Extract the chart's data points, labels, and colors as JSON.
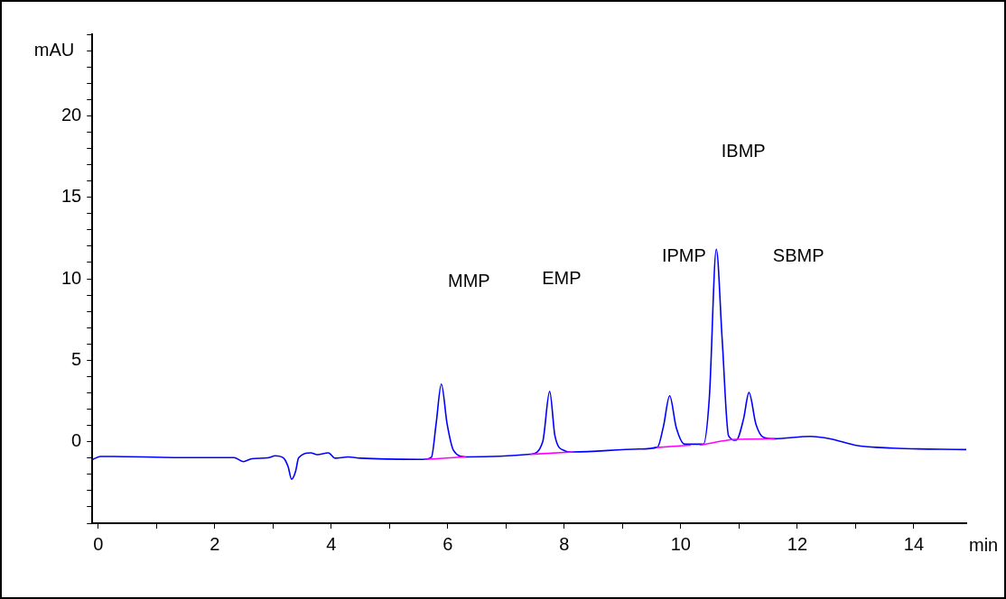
{
  "chart_data": {
    "type": "line",
    "xlabel": "min",
    "ylabel": "mAU",
    "xlim": [
      -0.1,
      14.9
    ],
    "ylim": [
      -5,
      25
    ],
    "xticks": [
      0,
      {
        "value": 1,
        "label": null
      },
      2,
      {
        "value": 3,
        "label": null
      },
      4,
      {
        "value": 5,
        "label": null
      },
      6,
      {
        "value": 7,
        "label": null
      },
      8,
      {
        "value": 9,
        "label": null
      },
      10,
      {
        "value": 11,
        "label": null
      },
      12,
      {
        "value": 13,
        "label": null
      },
      14
    ],
    "yticks": [
      {
        "value": -5,
        "label": null
      },
      {
        "value": -4,
        "label": null
      },
      {
        "value": -3,
        "label": null
      },
      {
        "value": -2,
        "label": null
      },
      {
        "value": -1,
        "label": null
      },
      0,
      {
        "value": 1,
        "label": null
      },
      {
        "value": 2,
        "label": null
      },
      {
        "value": 3,
        "label": null
      },
      {
        "value": 4,
        "label": null
      },
      5,
      {
        "value": 6,
        "label": null
      },
      {
        "value": 7,
        "label": null
      },
      {
        "value": 8,
        "label": null
      },
      {
        "value": 9,
        "label": null
      },
      10,
      {
        "value": 11,
        "label": null
      },
      {
        "value": 12,
        "label": null
      },
      {
        "value": 13,
        "label": null
      },
      {
        "value": 14,
        "label": null
      },
      15,
      {
        "value": 16,
        "label": null
      },
      {
        "value": 17,
        "label": null
      },
      {
        "value": 18,
        "label": null
      },
      {
        "value": 19,
        "label": null
      },
      20,
      {
        "value": 21,
        "label": null
      },
      {
        "value": 22,
        "label": null
      },
      {
        "value": 23,
        "label": null
      },
      {
        "value": 24,
        "label": null
      },
      {
        "value": 25,
        "label": null
      }
    ],
    "grid": false,
    "legend": false,
    "marker": "none",
    "line_style": "solid",
    "series": [
      {
        "color": "#0000ff",
        "x": [
          -0.09,
          0.04,
          0.25,
          1.32,
          2.33,
          2.49,
          2.64,
          2.91,
          3.04,
          3.18,
          3.26,
          3.32,
          3.39,
          3.44,
          3.65,
          3.76,
          3.95,
          4.07,
          4.29,
          4.5,
          5.57,
          5.72,
          5.8,
          5.89,
          5.99,
          6.1,
          6.31,
          7.42,
          7.63,
          7.75,
          7.84,
          8.0,
          8.15,
          9.28,
          9.6,
          9.7,
          9.81,
          9.92,
          10.07,
          10.39,
          10.49,
          10.61,
          10.71,
          10.82,
          10.95,
          11.08,
          11.17,
          11.29,
          11.42,
          11.61,
          12.22,
          12.57,
          12.99,
          13.63,
          14.9
        ],
        "values": [
          -1.08,
          -0.9,
          -0.9,
          -0.97,
          -0.97,
          -1.22,
          -1.04,
          -0.99,
          -0.86,
          -0.99,
          -1.53,
          -2.3,
          -1.8,
          -0.99,
          -0.68,
          -0.79,
          -0.68,
          -1.01,
          -0.93,
          -1.01,
          -1.08,
          -0.95,
          1.08,
          3.54,
          1.08,
          -0.54,
          -0.93,
          -0.77,
          0.0,
          3.09,
          0.36,
          -0.54,
          -0.63,
          -0.45,
          -0.33,
          0.9,
          2.82,
          0.9,
          -0.15,
          -0.15,
          2.69,
          11.81,
          6.3,
          0.36,
          0.09,
          1.44,
          3.02,
          1.08,
          0.27,
          0.18,
          0.33,
          0.18,
          -0.21,
          -0.39,
          -0.48
        ]
      },
      {
        "color": "#ff00ff",
        "x": [
          5.62,
          6.31,
          6.9,
          7.42,
          8.15,
          8.9,
          9.58,
          10.17,
          10.25,
          10.33,
          10.95,
          11.61
        ],
        "values": [
          -1.08,
          -0.93,
          null,
          -0.77,
          -0.63,
          null,
          -0.36,
          -0.21,
          null,
          -0.21,
          0.15,
          0.18
        ]
      }
    ],
    "annotations": [
      "MMP",
      "EMP",
      "IPMP",
      "IBMP",
      "SBMP"
    ]
  }
}
